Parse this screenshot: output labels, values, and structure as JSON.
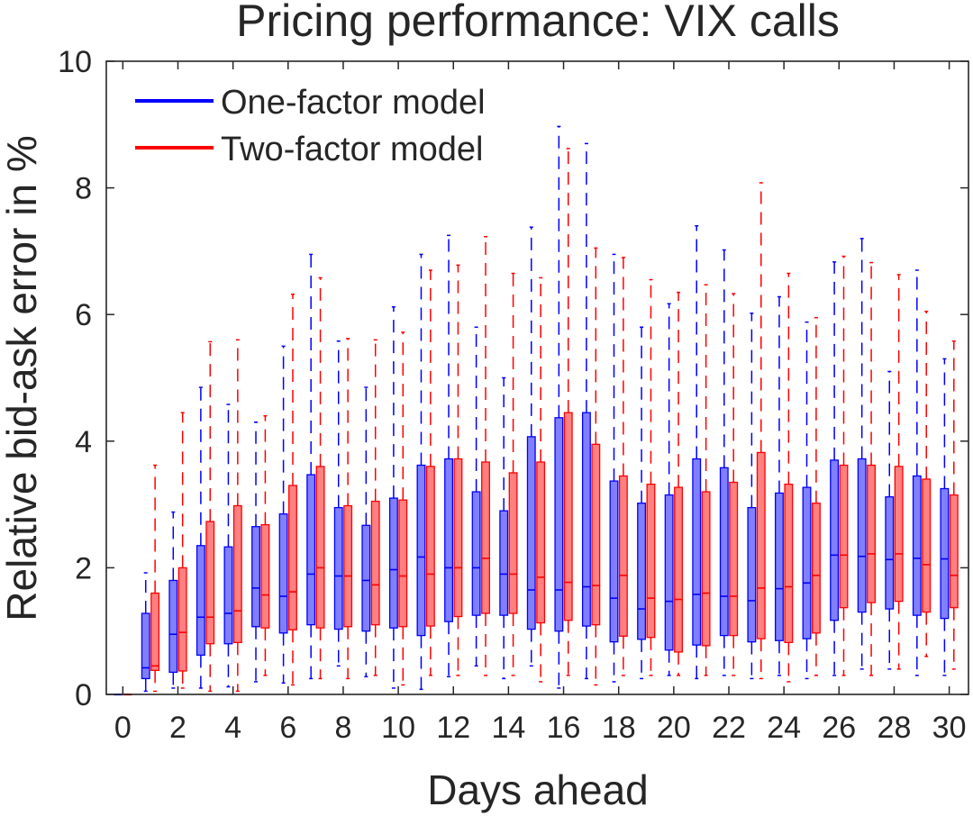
{
  "chart_data": {
    "type": "boxplot",
    "title": "Pricing performance: VIX calls",
    "xlabel": "Days ahead",
    "ylabel": "Relative bid-ask error in %",
    "xlim": [
      -0.6,
      30.7
    ],
    "ylim": [
      0,
      10
    ],
    "xticks": [
      0,
      2,
      4,
      6,
      8,
      10,
      12,
      14,
      16,
      18,
      20,
      22,
      24,
      26,
      28,
      30
    ],
    "yticks": [
      0,
      2,
      4,
      6,
      8,
      10
    ],
    "xtick_labels": [
      "0",
      "2",
      "4",
      "6",
      "8",
      "10",
      "12",
      "14",
      "16",
      "18",
      "20",
      "22",
      "24",
      "26",
      "28",
      "30"
    ],
    "ytick_labels": [
      "0",
      "2",
      "4",
      "6",
      "8",
      "10"
    ],
    "legend_position": "top-left",
    "days": [
      0,
      1,
      2,
      3,
      4,
      5,
      6,
      7,
      8,
      9,
      10,
      11,
      12,
      13,
      14,
      15,
      16,
      17,
      18,
      19,
      20,
      21,
      22,
      23,
      24,
      25,
      26,
      27,
      28,
      29,
      30
    ],
    "series": [
      {
        "name": "One-factor model",
        "color": "#0000ff",
        "fill": "#8080ff",
        "whisker_low": [
          0,
          0.05,
          0.1,
          0.1,
          0.12,
          0.2,
          0.18,
          0.25,
          0.45,
          0.28,
          0.1,
          0.08,
          0.28,
          0.45,
          0.25,
          0.45,
          0.1,
          0.25,
          0.2,
          0.25,
          0.3,
          0.25,
          0.3,
          0.25,
          0.3,
          0.25,
          0.3,
          0.4,
          0.4,
          0.3,
          0.3
        ],
        "q1": [
          0,
          0.25,
          0.35,
          0.62,
          0.8,
          1.07,
          0.97,
          1.1,
          1.03,
          1.0,
          1.05,
          0.93,
          1.15,
          1.25,
          1.25,
          1.03,
          1.0,
          1.08,
          0.83,
          0.87,
          0.7,
          0.78,
          0.93,
          0.83,
          0.85,
          0.88,
          1.17,
          1.3,
          1.35,
          1.25,
          1.2
        ],
        "median": [
          0,
          0.42,
          0.95,
          1.22,
          1.28,
          1.68,
          1.55,
          1.9,
          1.87,
          1.8,
          1.97,
          2.17,
          2.0,
          2.0,
          1.9,
          1.65,
          1.65,
          1.7,
          1.52,
          1.35,
          1.47,
          1.58,
          1.55,
          1.48,
          1.67,
          1.76,
          2.2,
          2.18,
          2.13,
          2.15,
          2.14
        ],
        "q3": [
          0,
          1.28,
          1.8,
          2.35,
          2.33,
          2.65,
          2.85,
          3.47,
          2.95,
          2.67,
          3.1,
          3.62,
          3.72,
          3.2,
          2.9,
          4.07,
          4.37,
          4.45,
          3.37,
          3.02,
          3.15,
          3.72,
          3.58,
          2.95,
          3.18,
          3.27,
          3.7,
          3.72,
          3.12,
          3.45,
          3.25
        ],
        "whisker_high": [
          0,
          1.92,
          2.88,
          4.85,
          4.58,
          4.3,
          5.5,
          6.95,
          5.58,
          4.85,
          6.12,
          6.95,
          7.25,
          5.8,
          5.0,
          7.38,
          8.97,
          8.7,
          6.95,
          5.8,
          6.17,
          7.4,
          7.02,
          6.02,
          6.28,
          5.88,
          6.83,
          7.2,
          5.1,
          6.7,
          5.3
        ]
      },
      {
        "name": "Two-factor model",
        "color": "#ff0000",
        "fill": "#ff8080",
        "whisker_low": [
          0,
          0.05,
          0.1,
          0.05,
          0.05,
          0.3,
          0.15,
          0.25,
          0.25,
          0.3,
          0.15,
          0.3,
          0.3,
          0.3,
          0.3,
          0.2,
          0.3,
          0.15,
          0.3,
          0.3,
          0.3,
          0.3,
          0.3,
          0.25,
          0.2,
          0.3,
          0.3,
          0.3,
          0.4,
          0.6,
          0.4
        ],
        "q1": [
          0,
          0.38,
          0.37,
          0.8,
          0.82,
          1.05,
          1.02,
          1.05,
          1.07,
          1.1,
          1.07,
          1.08,
          1.23,
          1.28,
          1.28,
          1.13,
          1.17,
          1.1,
          0.92,
          0.9,
          0.67,
          0.77,
          0.93,
          0.88,
          0.82,
          0.97,
          1.37,
          1.45,
          1.47,
          1.3,
          1.37
        ],
        "median": [
          0,
          0.45,
          0.98,
          1.22,
          1.32,
          1.57,
          1.62,
          2.0,
          1.87,
          1.73,
          1.87,
          1.9,
          2.0,
          2.15,
          1.9,
          1.85,
          1.77,
          1.72,
          1.88,
          1.52,
          1.5,
          1.6,
          1.55,
          1.68,
          1.7,
          1.88,
          2.2,
          2.22,
          2.22,
          2.05,
          1.88
        ],
        "q3": [
          0,
          1.6,
          2.0,
          2.73,
          2.98,
          2.68,
          3.3,
          3.6,
          2.98,
          3.05,
          3.07,
          3.6,
          3.72,
          3.67,
          3.5,
          3.67,
          4.45,
          3.95,
          3.45,
          3.32,
          3.27,
          3.2,
          3.35,
          3.82,
          3.32,
          3.02,
          3.62,
          3.62,
          3.6,
          3.4,
          3.15
        ],
        "whisker_high": [
          0,
          3.62,
          4.45,
          5.57,
          5.6,
          4.4,
          6.32,
          6.58,
          5.62,
          5.6,
          5.72,
          6.7,
          6.78,
          7.23,
          6.65,
          6.58,
          8.62,
          7.05,
          6.9,
          6.55,
          6.35,
          6.47,
          6.33,
          8.08,
          6.65,
          5.95,
          6.92,
          6.82,
          6.63,
          6.05,
          5.58
        ]
      }
    ]
  }
}
